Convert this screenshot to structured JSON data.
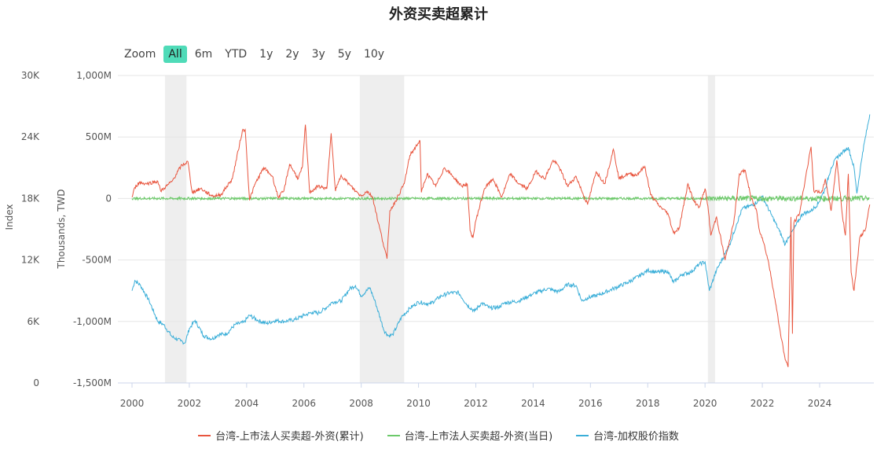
{
  "title": "外资买卖超累计",
  "zoom": {
    "label": "Zoom",
    "buttons": [
      "All",
      "6m",
      "YTD",
      "1y",
      "2y",
      "3y",
      "5y",
      "10y"
    ],
    "active": "All"
  },
  "colors": {
    "cumulative": "#e8553e",
    "daily": "#6cc96a",
    "index": "#3aaed8",
    "recession": "#eeeeee",
    "grid": "#e6e6e6"
  },
  "chart_data": {
    "type": "line",
    "title": "外资买卖超累计",
    "x_ticks": [
      "2000",
      "2002",
      "2004",
      "2006",
      "2008",
      "2010",
      "2012",
      "2014",
      "2016",
      "2018",
      "2020",
      "2022",
      "2024"
    ],
    "y_right_axis": {
      "title": "Thousands, TWD",
      "ticks": [
        "1,000M",
        "500M",
        "0",
        "-500M",
        "-1,000M",
        "-1,500M"
      ],
      "range": [
        -1500,
        1000
      ],
      "unit": "M TWD"
    },
    "y_left_axis": {
      "title": "Index",
      "ticks": [
        "30K",
        "24K",
        "18K",
        "12K",
        "6K",
        "0"
      ],
      "range": [
        0,
        30000
      ]
    },
    "shaded_periods": [
      [
        2001.15,
        2001.9
      ],
      [
        2007.95,
        2009.5
      ],
      [
        2020.1,
        2020.35
      ]
    ],
    "legend": [
      "台湾-上市法人买卖超-外资(累计)",
      "台湾-上市法人买卖超-外资(当日)",
      "台湾-加权股价指数"
    ],
    "series": [
      {
        "name": "台湾-上市法人买卖超-外资(累计)",
        "axis": "M TWD",
        "x": [
          2000.0,
          2000.1,
          2000.25,
          2000.5,
          2000.9,
          2001.0,
          2001.1,
          2001.4,
          2001.7,
          2001.95,
          2002.1,
          2002.4,
          2002.8,
          2003.1,
          2003.5,
          2003.85,
          2003.95,
          2004.1,
          2004.3,
          2004.6,
          2004.9,
          2005.1,
          2005.3,
          2005.5,
          2005.8,
          2005.95,
          2006.05,
          2006.2,
          2006.5,
          2006.8,
          2006.95,
          2007.1,
          2007.3,
          2007.6,
          2007.8,
          2008.0,
          2008.2,
          2008.4,
          2008.6,
          2008.9,
          2009.0,
          2009.2,
          2009.5,
          2009.7,
          2009.9,
          2010.05,
          2010.1,
          2010.3,
          2010.6,
          2010.9,
          2011.2,
          2011.5,
          2011.7,
          2011.8,
          2011.9,
          2012.0,
          2012.3,
          2012.6,
          2012.9,
          2013.2,
          2013.5,
          2013.8,
          2014.1,
          2014.4,
          2014.7,
          2014.9,
          2015.2,
          2015.5,
          2015.7,
          2015.9,
          2016.2,
          2016.5,
          2016.8,
          2017.0,
          2017.3,
          2017.6,
          2017.9,
          2018.1,
          2018.4,
          2018.7,
          2018.9,
          2019.1,
          2019.4,
          2019.6,
          2019.8,
          2020.0,
          2020.1,
          2020.2,
          2020.4,
          2020.7,
          2020.9,
          2021.0,
          2021.2,
          2021.4,
          2021.6,
          2021.8,
          2021.9,
          2022.0,
          2022.2,
          2022.4,
          2022.6,
          2022.8,
          2022.9,
          2023.0,
          2023.05,
          2023.1,
          2023.3,
          2023.5,
          2023.7,
          2023.8,
          2023.95,
          2024.1,
          2024.2,
          2024.4,
          2024.6,
          2024.8,
          2024.9,
          2025.0,
          2025.1,
          2025.2,
          2025.4,
          2025.6,
          2025.75
        ],
        "values": [
          10,
          90,
          130,
          120,
          140,
          60,
          80,
          140,
          260,
          300,
          50,
          80,
          20,
          30,
          160,
          550,
          560,
          -10,
          120,
          250,
          180,
          10,
          60,
          280,
          160,
          260,
          600,
          50,
          100,
          80,
          530,
          60,
          190,
          110,
          60,
          20,
          60,
          10,
          -200,
          -490,
          -100,
          -20,
          120,
          350,
          420,
          470,
          50,
          200,
          100,
          250,
          180,
          100,
          120,
          -260,
          -320,
          -180,
          80,
          160,
          10,
          200,
          120,
          80,
          220,
          160,
          310,
          260,
          100,
          180,
          60,
          -50,
          220,
          120,
          400,
          160,
          200,
          190,
          260,
          30,
          -60,
          -120,
          -280,
          -240,
          120,
          -20,
          -70,
          80,
          -60,
          -300,
          -150,
          -500,
          -300,
          -200,
          200,
          230,
          10,
          -100,
          -260,
          -320,
          -500,
          -760,
          -1050,
          -1310,
          -1370,
          -150,
          -1100,
          -200,
          -120,
          160,
          420,
          60,
          50,
          60,
          160,
          -100,
          310,
          -150,
          -300,
          200,
          -600,
          -750,
          -320,
          -250,
          -50
        ],
        "note_shape": "approximate trace"
      },
      {
        "name": "台湾-上市法人买卖超-外资(当日)",
        "axis": "M TWD",
        "x": [
          2000.0,
          2025.75
        ],
        "values": [
          0,
          0
        ]
      },
      {
        "name": "台湾-加权股价指数",
        "axis": "Index",
        "x": [
          2000.0,
          2000.1,
          2000.3,
          2000.6,
          2000.9,
          2001.1,
          2001.4,
          2001.7,
          2001.85,
          2002.0,
          2002.2,
          2002.5,
          2002.8,
          2003.0,
          2003.3,
          2003.6,
          2003.9,
          2004.1,
          2004.4,
          2004.7,
          2005.0,
          2005.3,
          2005.7,
          2006.0,
          2006.3,
          2006.5,
          2006.8,
          2007.0,
          2007.3,
          2007.6,
          2007.8,
          2008.0,
          2008.3,
          2008.5,
          2008.8,
          2008.95,
          2009.1,
          2009.4,
          2009.7,
          2010.0,
          2010.4,
          2010.8,
          2011.1,
          2011.4,
          2011.7,
          2011.95,
          2012.2,
          2012.5,
          2012.8,
          2013.0,
          2013.5,
          2014.0,
          2014.5,
          2014.9,
          2015.2,
          2015.5,
          2015.7,
          2015.9,
          2016.3,
          2016.8,
          2017.3,
          2017.8,
          2018.0,
          2018.3,
          2018.7,
          2018.9,
          2019.2,
          2019.5,
          2019.8,
          2020.0,
          2020.15,
          2020.25,
          2020.4,
          2020.7,
          2020.9,
          2021.1,
          2021.3,
          2021.6,
          2021.9,
          2022.0,
          2022.3,
          2022.6,
          2022.8,
          2022.9,
          2023.1,
          2023.4,
          2023.7,
          2023.95,
          2024.2,
          2024.4,
          2024.6,
          2024.8,
          2025.0,
          2025.2,
          2025.3,
          2025.5,
          2025.75
        ],
        "values": [
          9000,
          10000,
          9500,
          8000,
          6000,
          5700,
          4500,
          4100,
          3900,
          5300,
          6100,
          4600,
          4300,
          4700,
          4800,
          5700,
          5900,
          6600,
          6100,
          5800,
          6100,
          6000,
          6200,
          6600,
          6900,
          6800,
          7400,
          7900,
          8000,
          9200,
          9500,
          8500,
          9300,
          7800,
          5100,
          4600,
          4700,
          6400,
          7300,
          7900,
          7700,
          8500,
          8800,
          8800,
          7600,
          7000,
          7800,
          7300,
          7400,
          7800,
          8000,
          8700,
          9200,
          8900,
          9600,
          9500,
          8000,
          8300,
          8600,
          9200,
          9800,
          10600,
          11000,
          10800,
          10900,
          9800,
          10600,
          10800,
          11600,
          11800,
          9000,
          9800,
          11000,
          12600,
          13800,
          15500,
          17000,
          17300,
          17800,
          18200,
          16500,
          14800,
          13500,
          14200,
          15000,
          16500,
          16800,
          17500,
          19000,
          21000,
          22000,
          22500,
          23000,
          21000,
          18500,
          22500,
          26200
        ]
      }
    ]
  }
}
